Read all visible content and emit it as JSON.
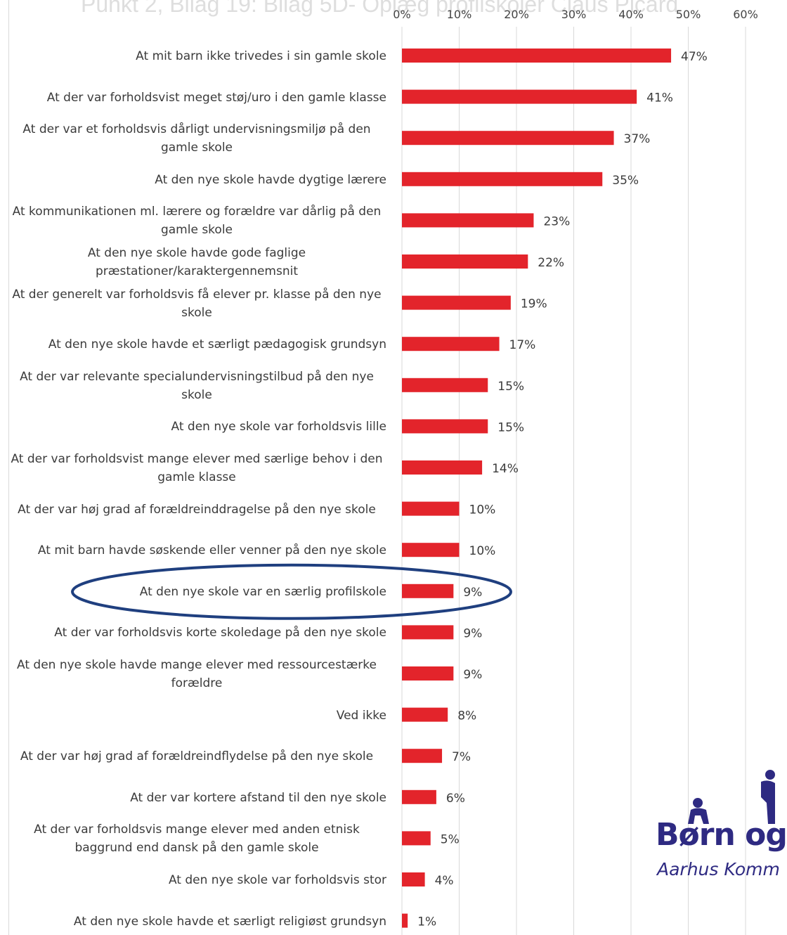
{
  "document": {
    "title": "Punkt 2, Bilag 19: Bilag 5D- Oplæg profilskoler Claus Picard"
  },
  "logo": {
    "wordmark": "Børn og",
    "subtitle": "Aarhus Komm"
  },
  "colors": {
    "bar": "#e3242b",
    "highlight_ellipse": "#1f3f7f",
    "grid": "#d9d9d9",
    "logo": "#2e2a82"
  },
  "chart_data": {
    "type": "bar",
    "orientation": "horizontal",
    "title": "",
    "xlabel": "",
    "ylabel": "",
    "xlim": [
      0,
      60
    ],
    "x_ticks": [
      "0%",
      "10%",
      "20%",
      "30%",
      "40%",
      "50%",
      "60%"
    ],
    "x_tick_values": [
      0,
      10,
      20,
      30,
      40,
      50,
      60
    ],
    "x_axis_position": "top",
    "grid": true,
    "legend": "none",
    "highlighted_category_index": 13,
    "categories": [
      "At mit barn ikke trivedes i sin gamle skole",
      "At der var forholdsvist meget støj/uro i den gamle klasse",
      "At der var et forholdsvis dårligt undervisningsmiljø på den gamle skole",
      "At den nye skole havde dygtige lærere",
      "At kommunikationen ml. lærere og forældre var dårlig på den gamle skole",
      "At den nye skole havde gode faglige præstationer/karaktergennemsnit",
      "At der generelt var forholdsvis få elever pr. klasse på den nye skole",
      "At den nye skole havde et særligt pædagogisk grundsyn",
      "At der var relevante specialundervisningstilbud på den nye skole",
      "At den nye skole var forholdsvis lille",
      "At der var forholdsvist mange elever med særlige behov i den gamle klasse",
      "At der var høj grad af forældreinddragelse på den nye skole",
      "At mit barn havde søskende eller venner på den nye skole",
      "At den nye skole var en særlig profilskole",
      "At der var forholdsvis korte skoledage på den nye skole",
      "At den nye skole havde mange elever med ressourcestærke forældre",
      "Ved ikke",
      "At der var høj grad af forældreindflydelse på den nye skole",
      "At der var kortere afstand til den nye skole",
      "At der var forholdsvis mange elever med anden etnisk baggrund end dansk på den gamle skole",
      "At den nye skole var forholdsvis stor",
      "At den nye skole havde et særligt religiøst grundsyn"
    ],
    "values": [
      47,
      41,
      37,
      35,
      23,
      22,
      19,
      17,
      15,
      15,
      14,
      10,
      10,
      9,
      9,
      9,
      8,
      7,
      6,
      5,
      4,
      1
    ],
    "value_labels": [
      "47%",
      "41%",
      "37%",
      "35%",
      "23%",
      "22%",
      "19%",
      "17%",
      "15%",
      "15%",
      "14%",
      "10%",
      "10%",
      "9%",
      "9%",
      "9%",
      "8%",
      "7%",
      "6%",
      "5%",
      "4%",
      "1%"
    ]
  }
}
